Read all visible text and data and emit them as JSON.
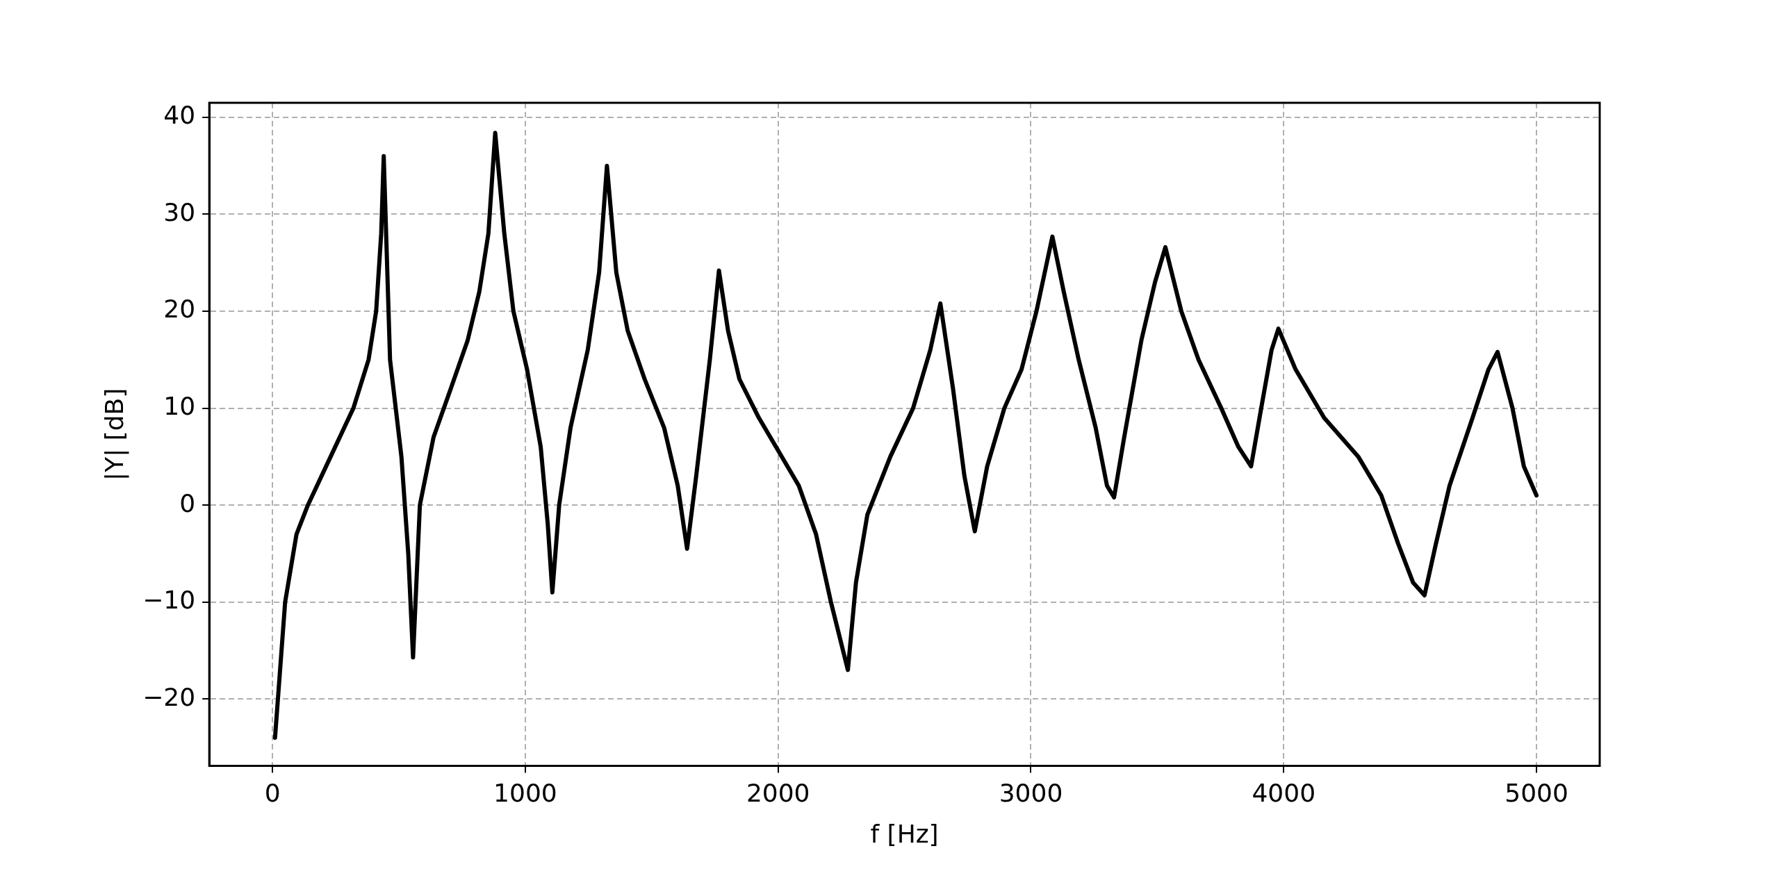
{
  "chart_data": {
    "type": "line",
    "xlabel": "f [Hz]",
    "ylabel": "|Y| [dB]",
    "xlim": [
      -250,
      5250
    ],
    "ylim": [
      -26.9,
      41.5
    ],
    "xticks": [
      0,
      1000,
      2000,
      3000,
      4000,
      5000
    ],
    "yticks": [
      -20,
      -10,
      0,
      10,
      20,
      30,
      40
    ],
    "grid": true,
    "legend": false,
    "marker": "none",
    "line_style": "solid",
    "series": [
      {
        "color": "#000000",
        "x": [
          10,
          50,
          95,
          140,
          230,
          320,
          380,
          410,
          430,
          440,
          465,
          510,
          537,
          556,
          583,
          637,
          705,
          772,
          818,
          854,
          881,
          917,
          953,
          1007,
          1061,
          1089,
          1107,
          1134,
          1179,
          1247,
          1292,
          1323,
          1360,
          1405,
          1472,
          1549,
          1603,
          1640,
          1676,
          1730,
          1766,
          1802,
          1847,
          1924,
          1992,
          2082,
          2150,
          2209,
          2276,
          2308,
          2353,
          2444,
          2534,
          2602,
          2642,
          2692,
          2737,
          2778,
          2827,
          2895,
          2963,
          3022,
          3085,
          3130,
          3189,
          3256,
          3301,
          3329,
          3369,
          3437,
          3491,
          3532,
          3595,
          3663,
          3753,
          3821,
          3871,
          3911,
          3952,
          3979,
          4047,
          4160,
          4295,
          4386,
          4453,
          4512,
          4557,
          4602,
          4656,
          4747,
          4810,
          4846,
          4905,
          4950,
          5000
        ],
        "values": [
          -24,
          -10,
          -3,
          0,
          5,
          10,
          15,
          20,
          28,
          36,
          15,
          5,
          -5,
          -15.7,
          0,
          7,
          12,
          17,
          22,
          28,
          38.4,
          28,
          20,
          14,
          6,
          -2,
          -9,
          0,
          8,
          16,
          24,
          35,
          24,
          18,
          13,
          8,
          2,
          -4.5,
          3,
          15,
          24.2,
          18,
          13,
          9,
          6,
          2,
          -3,
          -10,
          -17,
          -8,
          -1,
          5,
          10,
          16,
          20.8,
          12,
          3,
          -2.7,
          4,
          10,
          14,
          20,
          27.7,
          22,
          15,
          8,
          2,
          0.8,
          7,
          17,
          23,
          26.6,
          20,
          15,
          10,
          6,
          4,
          10,
          16,
          18.2,
          14,
          9,
          5,
          1,
          -4,
          -8,
          -9.3,
          -4,
          2,
          9,
          14,
          15.8,
          10,
          4,
          1
        ]
      }
    ]
  }
}
